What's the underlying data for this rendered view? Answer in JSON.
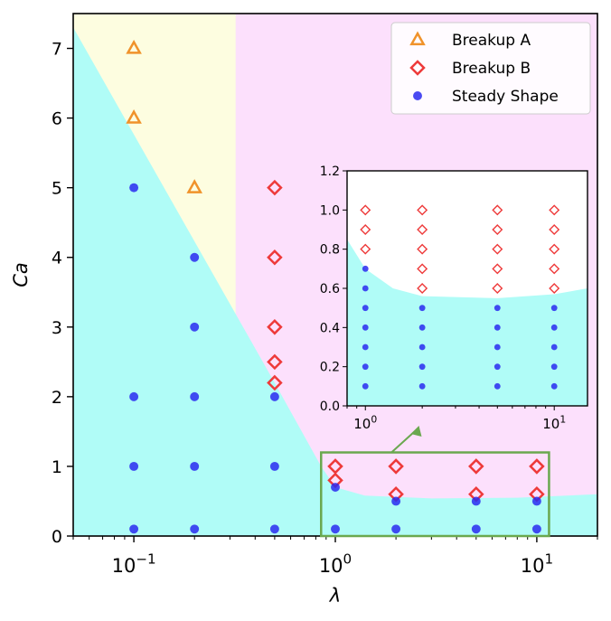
{
  "chart_data": {
    "type": "scatter",
    "xscale": "log",
    "xlabel": "λ",
    "ylabel": "Ca",
    "xlim": [
      0.05,
      20
    ],
    "ylim": [
      0,
      7.5
    ],
    "xticks": [
      {
        "value": 0.1,
        "base": "10",
        "exp": "−1"
      },
      {
        "value": 1,
        "base": "10",
        "exp": "0"
      },
      {
        "value": 10,
        "base": "10",
        "exp": "1"
      }
    ],
    "yticks": [
      0,
      1,
      2,
      3,
      4,
      5,
      6,
      7
    ],
    "legend_position": "top-right",
    "region_colors": {
      "breakup_a": "#fdfde0",
      "breakup_b": "#fce0fc",
      "steady": "#b0fcf7"
    },
    "boundary": [
      [
        0.05,
        7.3
      ],
      [
        0.5,
        2.2
      ],
      [
        0.85,
        1.0
      ],
      [
        1.0,
        0.7
      ],
      [
        1.4,
        0.58
      ],
      [
        3,
        0.54
      ],
      [
        8,
        0.55
      ],
      [
        20,
        0.6
      ]
    ],
    "region_split_x": 0.32,
    "series": [
      {
        "name": "Breakup A",
        "marker": "triangle",
        "color": "#f0922a",
        "points": [
          [
            0.1,
            7
          ],
          [
            0.1,
            6
          ],
          [
            0.2,
            5
          ]
        ]
      },
      {
        "name": "Breakup B",
        "marker": "diamond",
        "color": "#ee3a3a",
        "points": [
          [
            0.5,
            5
          ],
          [
            0.5,
            4
          ],
          [
            0.5,
            3
          ],
          [
            0.5,
            2.5
          ],
          [
            0.5,
            2.2
          ],
          [
            1,
            1
          ],
          [
            1,
            0.8
          ],
          [
            2,
            1
          ],
          [
            2,
            0.6
          ],
          [
            5,
            1
          ],
          [
            5,
            0.6
          ],
          [
            10,
            1
          ],
          [
            10,
            0.6
          ]
        ]
      },
      {
        "name": "Steady Shape",
        "marker": "circle",
        "color": "#2a2af0",
        "points": [
          [
            0.1,
            5
          ],
          [
            0.1,
            2
          ],
          [
            0.1,
            1
          ],
          [
            0.1,
            0.1
          ],
          [
            0.2,
            4
          ],
          [
            0.2,
            3
          ],
          [
            0.2,
            2
          ],
          [
            0.2,
            1
          ],
          [
            0.2,
            0.1
          ],
          [
            0.5,
            2
          ],
          [
            0.5,
            1
          ],
          [
            0.5,
            0.1
          ],
          [
            1,
            0.7
          ],
          [
            1,
            0.1
          ],
          [
            2,
            0.5
          ],
          [
            2,
            0.1
          ],
          [
            5,
            0.5
          ],
          [
            5,
            0.1
          ],
          [
            10,
            0.5
          ],
          [
            10,
            0.1
          ]
        ]
      }
    ],
    "inset": {
      "xlim": [
        0.8,
        15
      ],
      "ylim": [
        0,
        1.2
      ],
      "xscale": "log",
      "xticks": [
        {
          "value": 1,
          "base": "10",
          "exp": "0"
        },
        {
          "value": 10,
          "base": "10",
          "exp": "1"
        }
      ],
      "yticks": [
        "0.0",
        "0.2",
        "0.4",
        "0.6",
        "0.8",
        "1.0",
        "1.2"
      ],
      "boundary": [
        [
          0.8,
          0.85
        ],
        [
          1,
          0.7
        ],
        [
          1.4,
          0.6
        ],
        [
          2,
          0.56
        ],
        [
          5,
          0.55
        ],
        [
          10,
          0.57
        ],
        [
          15,
          0.6
        ]
      ],
      "series": [
        {
          "name": "Breakup B",
          "marker": "diamond",
          "color": "#ee3a3a",
          "points": [
            [
              1,
              1.0
            ],
            [
              1,
              0.9
            ],
            [
              1,
              0.8
            ],
            [
              2,
              1.0
            ],
            [
              2,
              0.9
            ],
            [
              2,
              0.8
            ],
            [
              2,
              0.7
            ],
            [
              2,
              0.6
            ],
            [
              5,
              1.0
            ],
            [
              5,
              0.9
            ],
            [
              5,
              0.8
            ],
            [
              5,
              0.7
            ],
            [
              5,
              0.6
            ],
            [
              10,
              1.0
            ],
            [
              10,
              0.9
            ],
            [
              10,
              0.8
            ],
            [
              10,
              0.7
            ],
            [
              10,
              0.6
            ]
          ]
        },
        {
          "name": "Steady Shape",
          "marker": "circle",
          "color": "#2a2af0",
          "points": [
            [
              1,
              0.7
            ],
            [
              1,
              0.6
            ],
            [
              1,
              0.5
            ],
            [
              1,
              0.4
            ],
            [
              1,
              0.3
            ],
            [
              1,
              0.2
            ],
            [
              1,
              0.1
            ],
            [
              2,
              0.5
            ],
            [
              2,
              0.4
            ],
            [
              2,
              0.3
            ],
            [
              2,
              0.2
            ],
            [
              2,
              0.1
            ],
            [
              5,
              0.5
            ],
            [
              5,
              0.4
            ],
            [
              5,
              0.3
            ],
            [
              5,
              0.2
            ],
            [
              5,
              0.1
            ],
            [
              10,
              0.5
            ],
            [
              10,
              0.4
            ],
            [
              10,
              0.3
            ],
            [
              10,
              0.2
            ],
            [
              10,
              0.1
            ]
          ]
        }
      ]
    },
    "zoom_box": {
      "x": [
        0.85,
        11.5
      ],
      "y": [
        0,
        1.2
      ],
      "color": "#6aa84f"
    }
  }
}
